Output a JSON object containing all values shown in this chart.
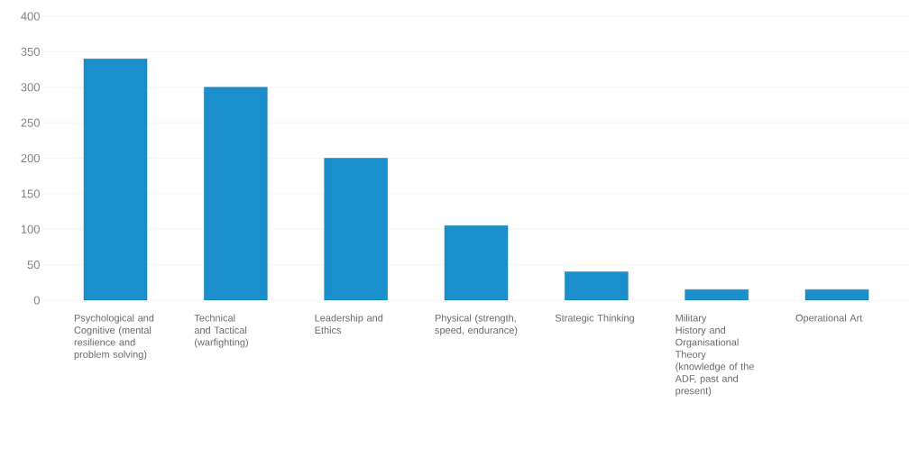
{
  "chart_data": {
    "type": "bar",
    "categories": [
      "Psychological and Cognitive (mental resilience and problem solving)",
      "Technical and Tactical (warfighting)",
      "Leadership and Ethics",
      "Physical (strength, speed, endurance)",
      "Strategic Thinking",
      "Military History and Organisational Theory (knowledge of the ADF, past and present)",
      "Operational Art"
    ],
    "values": [
      340,
      300,
      200,
      105,
      40,
      15,
      15
    ],
    "color": "#1a8fcc",
    "ylim": [
      0,
      400
    ],
    "yticks": [
      0,
      50,
      100,
      150,
      200,
      250,
      300,
      350,
      400
    ],
    "grid": "y"
  }
}
